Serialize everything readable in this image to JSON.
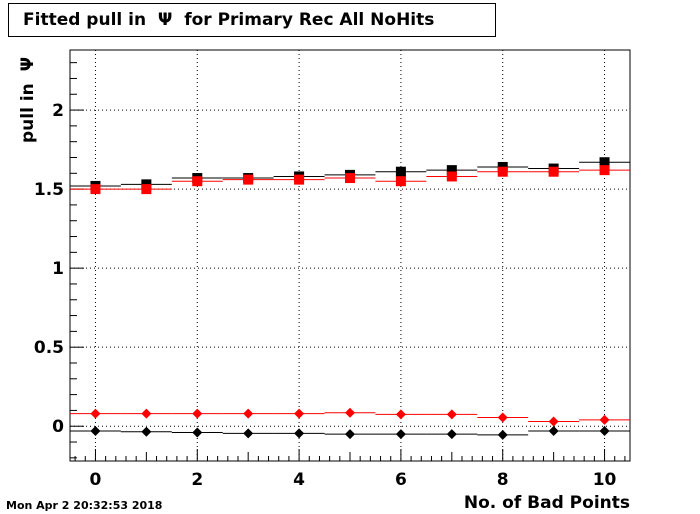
{
  "title": "Fitted pull in  Ψ  for Primary Rec All NoHits",
  "timestamp": "Mon Apr  2 20:32:53 2018",
  "chart_data": {
    "type": "scatter",
    "title": "Fitted pull in  Ψ  for Primary Rec All NoHits",
    "xlabel": "No. of Bad Points",
    "ylabel": "pull in  Ψ",
    "xlim": [
      -0.5,
      10.5
    ],
    "ylim": [
      -0.22,
      2.38
    ],
    "grid": true,
    "x_ticks": [
      0,
      2,
      4,
      6,
      8,
      10
    ],
    "y_ticks": [
      0,
      0.5,
      1,
      1.5,
      2
    ],
    "y_tick_labels": [
      "0",
      "0.5",
      "1",
      "1.5",
      "2"
    ],
    "x": [
      0,
      1,
      2,
      3,
      4,
      5,
      6,
      7,
      8,
      9,
      10
    ],
    "series": [
      {
        "color": "#000000",
        "marker": "square",
        "values": [
          1.52,
          1.53,
          1.57,
          1.57,
          1.58,
          1.59,
          1.61,
          1.62,
          1.64,
          1.63,
          1.67
        ]
      },
      {
        "color": "#ff0000",
        "marker": "square",
        "values": [
          1.5,
          1.5,
          1.55,
          1.56,
          1.56,
          1.57,
          1.55,
          1.58,
          1.61,
          1.61,
          1.62
        ]
      },
      {
        "color": "#ff0000",
        "marker": "diamond",
        "values": [
          0.08,
          0.08,
          0.08,
          0.08,
          0.08,
          0.085,
          0.075,
          0.075,
          0.055,
          0.03,
          0.04
        ]
      },
      {
        "color": "#000000",
        "marker": "diamond",
        "values": [
          -0.03,
          -0.035,
          -0.04,
          -0.045,
          -0.045,
          -0.05,
          -0.05,
          -0.05,
          -0.055,
          -0.03,
          -0.03
        ]
      }
    ]
  }
}
